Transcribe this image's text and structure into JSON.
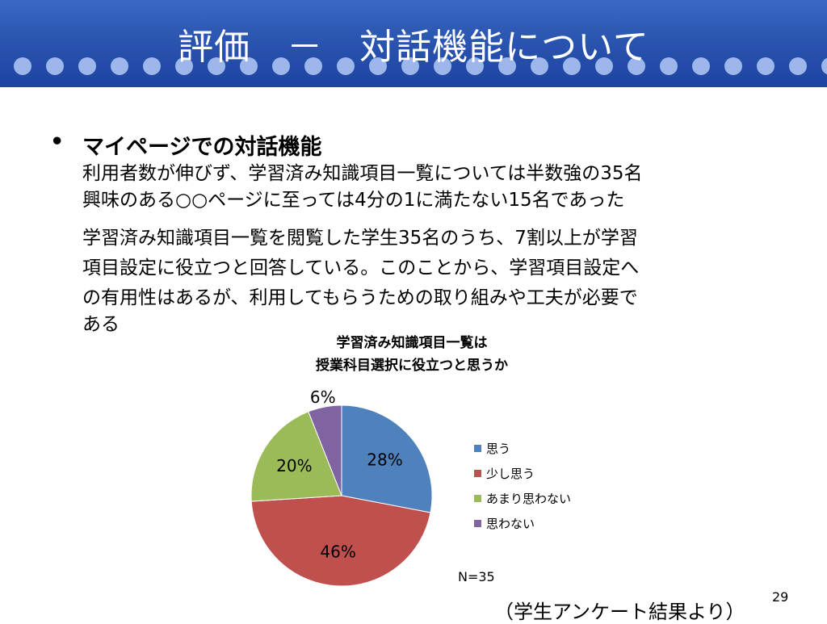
{
  "slide": {
    "title": "評価　－　対話機能について",
    "bullet_heading": "マイページでの対話機能",
    "line1": "利用者数が伸びず、学習済み知識項目一覧については半数強の35名",
    "line2": "興味のある○○ページに至っては4分の1に満たない15名であった",
    "line3": "学習済み知識項目一覧を閲覧した学生35名のうち、7割以上が学習",
    "line4": "項目設定に役立つと回答している。このことから、学習項目設定へ",
    "line5": "の有用性はあるが、利用してもらうための取り組みや工夫が必要で",
    "line6": "ある",
    "source": "（学生アンケート結果より）",
    "page_number": "29",
    "header_color": "#2a55b0",
    "dot_color": "#9db6ec"
  },
  "chart_data": {
    "type": "pie",
    "title_line1": "学習済み知識項目一覧は",
    "title_line2": "授業科目選択に役立つと思うか",
    "categories": [
      "思う",
      "少し思う",
      "あまり思わない",
      "思わない"
    ],
    "values": [
      28,
      46,
      20,
      6
    ],
    "labels": [
      "28%",
      "46%",
      "20%",
      "6%"
    ],
    "colors": [
      "#4f81bd",
      "#c0504d",
      "#9bbb59",
      "#8064a2"
    ],
    "legend_position": "right",
    "note": "N=35"
  }
}
